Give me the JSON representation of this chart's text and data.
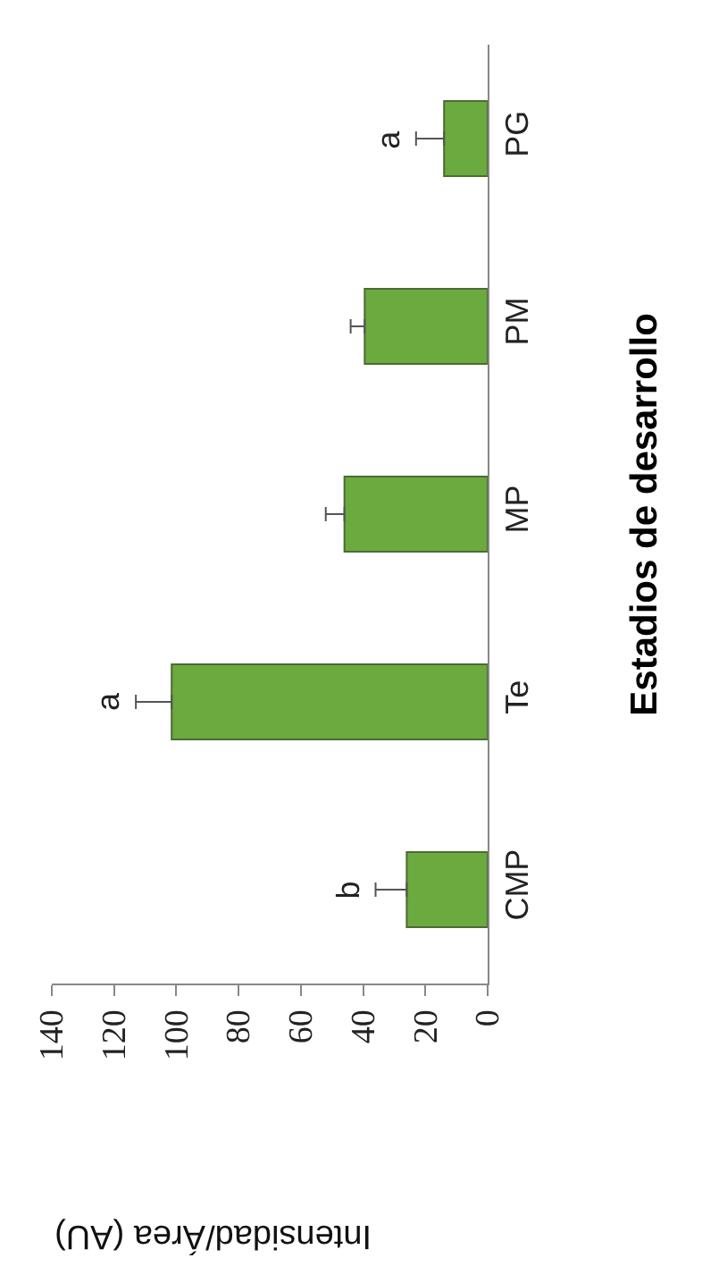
{
  "chart_data": {
    "type": "bar",
    "orientation": "horizontal",
    "xlabel": "Intensidad/Área (AU)",
    "ylabel": "Estadios de desarrollo",
    "categories": [
      "PG",
      "PM",
      "MP",
      "Te",
      "CMP"
    ],
    "values": [
      14,
      39.5,
      46,
      101.5,
      26
    ],
    "errors": [
      [
        14,
        23
      ],
      [
        39.5,
        44
      ],
      [
        46,
        52
      ],
      [
        101.5,
        113
      ],
      [
        26,
        36
      ]
    ],
    "color": "#6aaa3e",
    "xlim": [
      140,
      0
    ],
    "xticks": [
      0,
      20,
      40,
      60,
      80,
      100,
      120,
      140
    ],
    "grid": false,
    "legend": false,
    "annotations": [
      {
        "text": "a",
        "x": 23,
        "y": "PG"
      },
      {
        "text": "a",
        "x": 113,
        "y": "Te"
      },
      {
        "text": "b",
        "x": 36,
        "y": "CMP"
      }
    ]
  }
}
